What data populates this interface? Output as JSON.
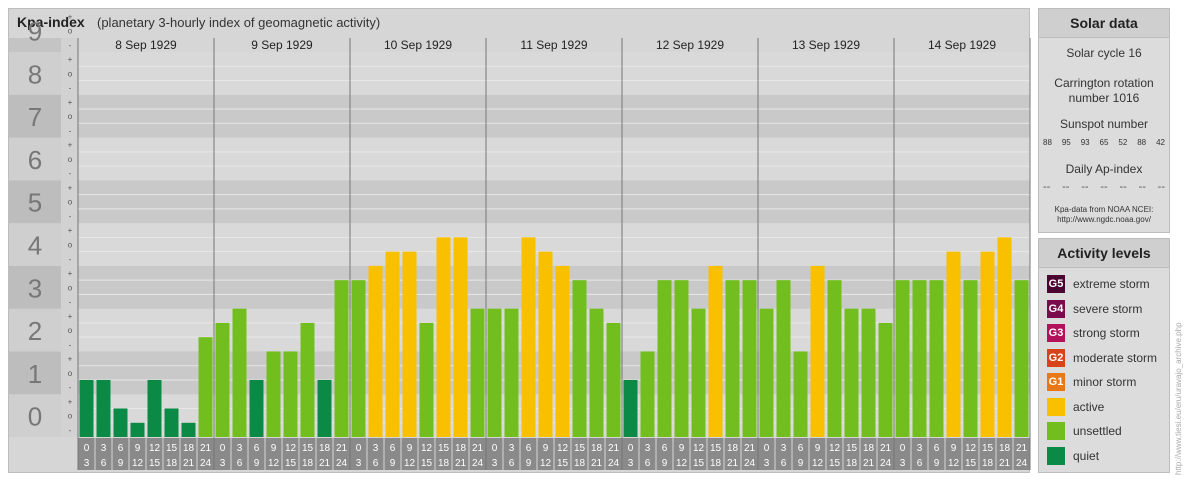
{
  "title": "Kpa-index",
  "subtitle": "(planetary 3-hourly index of geomagnetic activity)",
  "chart_data": {
    "type": "bar",
    "title": "Kpa-index",
    "subtitle": "(planetary 3-hourly index of geomagnetic activity)",
    "ylim": [
      0,
      9
    ],
    "y_ticks": [
      "0",
      "1",
      "2",
      "3",
      "4",
      "5",
      "6",
      "7",
      "8",
      "9"
    ],
    "sub_ticks": [
      "+",
      "o",
      "-"
    ],
    "days": [
      "8 Sep 1929",
      "9 Sep 1929",
      "10 Sep 1929",
      "11 Sep 1929",
      "12 Sep 1929",
      "13 Sep 1929",
      "14 Sep 1929"
    ],
    "interval_start": [
      "0",
      "3",
      "6",
      "9",
      "12",
      "15",
      "18",
      "21"
    ],
    "interval_end": [
      "3",
      "6",
      "9",
      "12",
      "15",
      "18",
      "21",
      "24"
    ],
    "values": [
      [
        1.333,
        1.333,
        0.667,
        0.333,
        1.333,
        0.667,
        0.333,
        2.333
      ],
      [
        2.667,
        3.0,
        1.333,
        2.0,
        2.0,
        2.667,
        1.333,
        3.667
      ],
      [
        3.667,
        4.0,
        4.333,
        4.333,
        2.667,
        4.667,
        4.667,
        3.0
      ],
      [
        3.0,
        3.0,
        4.667,
        4.333,
        4.0,
        3.667,
        3.0,
        2.667
      ],
      [
        1.333,
        2.0,
        3.667,
        3.667,
        3.0,
        4.0,
        3.667,
        3.667
      ],
      [
        3.0,
        3.667,
        2.0,
        4.0,
        3.667,
        3.0,
        3.0,
        2.667
      ],
      [
        3.667,
        3.667,
        3.667,
        4.333,
        3.667,
        4.333,
        4.667,
        3.667
      ]
    ],
    "level_colors": {
      "quiet": "#0a8a45",
      "unsettled": "#72be1e",
      "active": "#f9c000",
      "minor_storm": "#e87817",
      "moderate_storm": "#d9431a",
      "strong_storm": "#b3125a",
      "severe_storm": "#7a0c4c",
      "extreme_storm": "#4a0530"
    },
    "grid": true
  },
  "solar": {
    "header": "Solar data",
    "cycle": "Solar cycle 16",
    "carrington_1": "Carrington rotation",
    "carrington_2": "number 1016",
    "sunspot_label": "Sunspot number",
    "sunspots": [
      "88",
      "95",
      "93",
      "65",
      "52",
      "88",
      "42"
    ],
    "ap_label": "Daily Ap-index",
    "ap_values": [
      "--",
      "--",
      "--",
      "--",
      "--",
      "--",
      "--"
    ],
    "note_1": "Kpa-data from NOAA NCEI:",
    "note_2": "http://www.ngdc.noaa.gov/"
  },
  "levels": {
    "header": "Activity levels",
    "items": [
      {
        "code": "G5",
        "label": "extreme storm",
        "color": "#4a0530"
      },
      {
        "code": "G4",
        "label": "severe storm",
        "color": "#7a0c4c"
      },
      {
        "code": "G3",
        "label": "strong storm",
        "color": "#b3125a"
      },
      {
        "code": "G2",
        "label": "moderate storm",
        "color": "#d9431a"
      },
      {
        "code": "G1",
        "label": "minor storm",
        "color": "#e87817"
      },
      {
        "code": "",
        "label": "active",
        "color": "#f9c000"
      },
      {
        "code": "",
        "label": "unsettled",
        "color": "#72be1e"
      },
      {
        "code": "",
        "label": "quiet",
        "color": "#0a8a45"
      }
    ]
  },
  "watermark": "http://www.tiesi.eu/eru/uravajo_archive.php"
}
